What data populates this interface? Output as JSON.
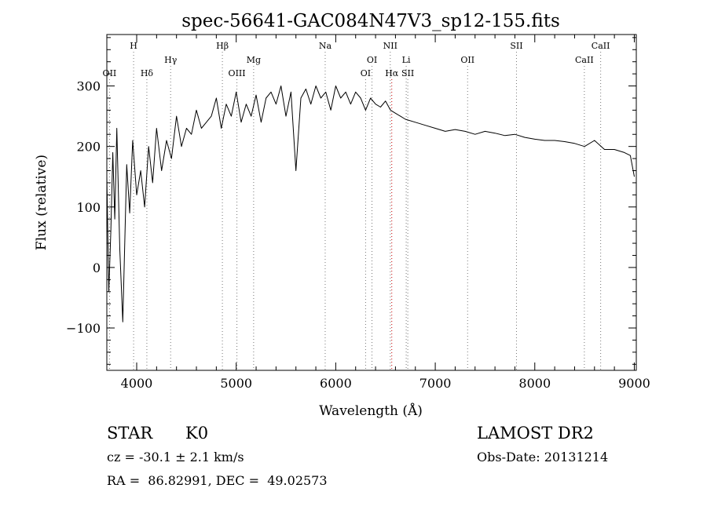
{
  "chart_data": {
    "type": "line",
    "title": "spec-56641-GAC084N47V3_sp12-155.fits",
    "xlabel": "Wavelength (Å)",
    "ylabel": "Flux (relative)",
    "xlim": [
      3700,
      9020
    ],
    "ylim": [
      -170,
      385
    ],
    "xticks": [
      4000,
      5000,
      6000,
      7000,
      8000,
      9000
    ],
    "yticks": [
      -100,
      0,
      100,
      200,
      300
    ],
    "grid": false,
    "line_color": "#000000",
    "marker_line_color_default": "#777777",
    "marker_line_color_halpha": "#cc0000",
    "series": [
      {
        "x": [
          3700,
          3720,
          3740,
          3760,
          3780,
          3800,
          3830,
          3860,
          3900,
          3930,
          3960,
          4000,
          4040,
          4080,
          4120,
          4160,
          4200,
          4250,
          4300,
          4350,
          4400,
          4450,
          4500,
          4550,
          4600,
          4650,
          4700,
          4750,
          4800,
          4850,
          4900,
          4950,
          5000,
          5050,
          5100,
          5150,
          5200,
          5250,
          5300,
          5350,
          5400,
          5450,
          5500,
          5550,
          5600,
          5650,
          5700,
          5750,
          5800,
          5850,
          5900,
          5950,
          6000,
          6050,
          6100,
          6150,
          6200,
          6250,
          6300,
          6350,
          6400,
          6450,
          6500,
          6550,
          6600,
          6650,
          6700,
          6800,
          6900,
          7000,
          7100,
          7200,
          7300,
          7400,
          7500,
          7600,
          7700,
          7800,
          7900,
          8000,
          8100,
          8200,
          8300,
          8400,
          8500,
          8600,
          8700,
          8800,
          8900,
          8960,
          9000
        ],
        "y": [
          150,
          -40,
          60,
          190,
          80,
          230,
          30,
          -90,
          170,
          90,
          210,
          120,
          160,
          100,
          200,
          140,
          230,
          160,
          210,
          180,
          250,
          200,
          230,
          220,
          260,
          230,
          240,
          250,
          280,
          230,
          270,
          250,
          290,
          240,
          270,
          250,
          285,
          240,
          280,
          290,
          270,
          300,
          250,
          290,
          160,
          280,
          295,
          270,
          300,
          280,
          290,
          260,
          300,
          280,
          290,
          270,
          290,
          280,
          260,
          280,
          270,
          265,
          275,
          260,
          255,
          250,
          245,
          240,
          235,
          230,
          225,
          228,
          225,
          220,
          225,
          222,
          218,
          220,
          215,
          212,
          210,
          210,
          208,
          205,
          200,
          210,
          195,
          195,
          190,
          185,
          150
        ]
      }
    ],
    "line_markers": [
      {
        "label": "OII",
        "x": 3727,
        "row": 3
      },
      {
        "label": "H",
        "x": 3969,
        "row": 1
      },
      {
        "label": "Hδ",
        "x": 4102,
        "row": 3
      },
      {
        "label": "Hγ",
        "x": 4341,
        "row": 2
      },
      {
        "label": "Hβ",
        "x": 4861,
        "row": 1
      },
      {
        "label": "OIII",
        "x": 5007,
        "row": 3
      },
      {
        "label": "Mg",
        "x": 5175,
        "row": 2
      },
      {
        "label": "Na",
        "x": 5894,
        "row": 1
      },
      {
        "label": "OI",
        "x": 6300,
        "row": 3
      },
      {
        "label": "OI",
        "x": 6364,
        "row": 2
      },
      {
        "label": "NII",
        "x": 6548,
        "row": 1
      },
      {
        "label": "Hα",
        "x": 6563,
        "row": 3
      },
      {
        "label": "Li",
        "x": 6708,
        "row": 2
      },
      {
        "label": "SII",
        "x": 6724,
        "row": 3
      },
      {
        "label": "OII",
        "x": 7325,
        "row": 2
      },
      {
        "label": "SII",
        "x": 7816,
        "row": 1
      },
      {
        "label": "CaII",
        "x": 8498,
        "row": 2
      },
      {
        "label": "CaII",
        "x": 8662,
        "row": 1
      }
    ]
  },
  "info": {
    "object_class": "STAR",
    "subclass": "K0",
    "survey": "LAMOST DR2",
    "redshift": "cz = -30.1 ± 2.1 km/s",
    "obs_date": "Obs-Date: 20131214",
    "coords": "RA =  86.82991, DEC =  49.02573"
  }
}
